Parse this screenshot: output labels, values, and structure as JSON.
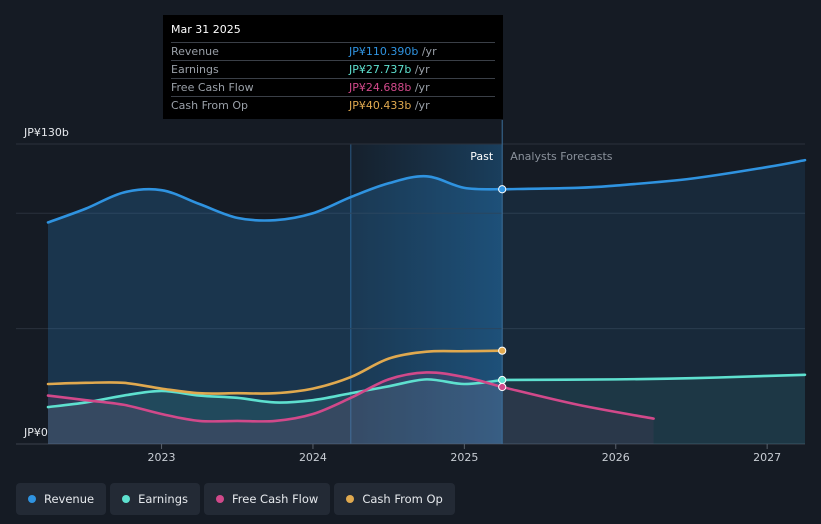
{
  "chart_data": {
    "type": "area",
    "title": "",
    "x_range": [
      2022.25,
      2027.25
    ],
    "ylim": [
      0,
      130
    ],
    "y_top_label": "JP¥130b",
    "y_bottom_label": "JP¥0",
    "x_ticks": [
      {
        "v": 2023.0,
        "label": "2023"
      },
      {
        "v": 2024.0,
        "label": "2024"
      },
      {
        "v": 2025.0,
        "label": "2025"
      },
      {
        "v": 2026.0,
        "label": "2026"
      },
      {
        "v": 2027.0,
        "label": "2027"
      }
    ],
    "divider_x": 2025.25,
    "past_label": "Past",
    "forecast_label": "Analysts Forecasts",
    "series": [
      {
        "name": "Revenue",
        "color": "#2f93e0",
        "fill": true,
        "past": [
          [
            2022.25,
            96
          ],
          [
            2022.5,
            102
          ],
          [
            2022.75,
            109
          ],
          [
            2023.0,
            110
          ],
          [
            2023.25,
            104
          ],
          [
            2023.5,
            98
          ],
          [
            2023.75,
            97
          ],
          [
            2024.0,
            100
          ],
          [
            2024.25,
            107
          ],
          [
            2024.5,
            113
          ],
          [
            2024.75,
            116
          ],
          [
            2025.0,
            111
          ],
          [
            2025.25,
            110.39
          ]
        ],
        "forecast": [
          [
            2025.25,
            110.39
          ],
          [
            2025.75,
            111
          ],
          [
            2026.0,
            112
          ],
          [
            2026.5,
            115
          ],
          [
            2027.0,
            120
          ],
          [
            2027.25,
            123
          ]
        ]
      },
      {
        "name": "Earnings",
        "color": "#5ee0cf",
        "fill": true,
        "past": [
          [
            2022.25,
            16
          ],
          [
            2022.5,
            18
          ],
          [
            2022.75,
            21
          ],
          [
            2023.0,
            23
          ],
          [
            2023.25,
            21
          ],
          [
            2023.5,
            20
          ],
          [
            2023.75,
            18
          ],
          [
            2024.0,
            19
          ],
          [
            2024.25,
            22
          ],
          [
            2024.5,
            25
          ],
          [
            2024.75,
            28
          ],
          [
            2025.0,
            26
          ],
          [
            2025.25,
            27.74
          ]
        ],
        "forecast": [
          [
            2025.25,
            27.74
          ],
          [
            2026.0,
            28
          ],
          [
            2026.5,
            28.5
          ],
          [
            2027.0,
            29.5
          ],
          [
            2027.25,
            30
          ]
        ]
      },
      {
        "name": "Free Cash Flow",
        "color": "#d1498a",
        "fill": true,
        "past": [
          [
            2022.25,
            21
          ],
          [
            2022.5,
            19
          ],
          [
            2022.75,
            17
          ],
          [
            2023.0,
            13
          ],
          [
            2023.25,
            10
          ],
          [
            2023.5,
            10
          ],
          [
            2023.75,
            10
          ],
          [
            2024.0,
            13
          ],
          [
            2024.25,
            20
          ],
          [
            2024.5,
            28
          ],
          [
            2024.75,
            31
          ],
          [
            2025.0,
            29
          ],
          [
            2025.25,
            24.69
          ]
        ],
        "forecast": [
          [
            2025.25,
            24.69
          ],
          [
            2025.75,
            17
          ],
          [
            2026.25,
            11
          ]
        ]
      },
      {
        "name": "Cash From Op",
        "color": "#e0a94f",
        "fill": false,
        "past": [
          [
            2022.25,
            26
          ],
          [
            2022.5,
            26.5
          ],
          [
            2022.75,
            26.5
          ],
          [
            2023.0,
            24
          ],
          [
            2023.25,
            22
          ],
          [
            2023.5,
            22
          ],
          [
            2023.75,
            22
          ],
          [
            2024.0,
            24
          ],
          [
            2024.25,
            29
          ],
          [
            2024.5,
            37
          ],
          [
            2024.75,
            40
          ],
          [
            2025.0,
            40.2
          ],
          [
            2025.25,
            40.43
          ]
        ],
        "forecast": []
      }
    ]
  },
  "tooltip": {
    "date": "Mar 31 2025",
    "rows": [
      {
        "label": "Revenue",
        "value": "JP¥110.390b",
        "unit": " /yr",
        "color": "#2f93e0"
      },
      {
        "label": "Earnings",
        "value": "JP¥27.737b",
        "unit": " /yr",
        "color": "#5ee0cf"
      },
      {
        "label": "Free Cash Flow",
        "value": "JP¥24.688b",
        "unit": " /yr",
        "color": "#d1498a"
      },
      {
        "label": "Cash From Op",
        "value": "JP¥40.433b",
        "unit": " /yr",
        "color": "#e0a94f"
      }
    ]
  },
  "legend": [
    {
      "label": "Revenue",
      "color": "#2f93e0"
    },
    {
      "label": "Earnings",
      "color": "#5ee0cf"
    },
    {
      "label": "Free Cash Flow",
      "color": "#d1498a"
    },
    {
      "label": "Cash From Op",
      "color": "#e0a94f"
    }
  ]
}
